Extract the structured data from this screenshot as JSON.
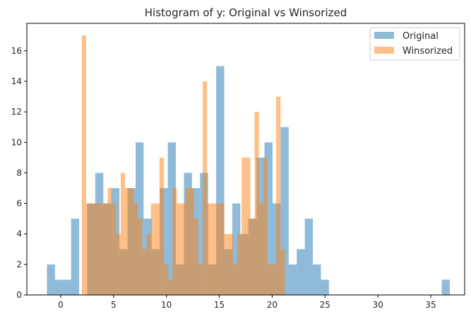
{
  "chart_data": {
    "type": "histogram",
    "title": "Histogram of y: Original vs Winsorized",
    "xlabel": "",
    "ylabel": "",
    "xlim": [
      -3.2,
      38.2
    ],
    "ylim": [
      0,
      17.8
    ],
    "xticks": [
      0,
      5,
      10,
      15,
      20,
      25,
      30,
      35
    ],
    "yticks": [
      0,
      2,
      4,
      6,
      8,
      10,
      12,
      14,
      16
    ],
    "grid": false,
    "legend_position": "top-right",
    "series": [
      {
        "name": "Original",
        "color": "#1f77b4",
        "alpha": 0.5,
        "bin_start": -1.3,
        "bin_width": 0.762,
        "counts": [
          2,
          1,
          1,
          5,
          0,
          6,
          8,
          6,
          7,
          3,
          7,
          10,
          5,
          3,
          7,
          10,
          2,
          8,
          7,
          8,
          2,
          15,
          3,
          6,
          4,
          5,
          9,
          10,
          6,
          11,
          2,
          3,
          5,
          2,
          1,
          0,
          0,
          0,
          0,
          0,
          0,
          0,
          0,
          0,
          0,
          0,
          0,
          0,
          0,
          1
        ]
      },
      {
        "name": "Winsorized",
        "color": "#ff7f0e",
        "alpha": 0.5,
        "bin_start": 2.0,
        "bin_width": 0.4084,
        "counts": [
          17,
          6,
          6,
          6,
          6,
          6,
          7,
          6,
          4,
          8,
          7,
          7,
          6,
          5,
          3,
          4,
          6,
          6,
          9,
          2,
          1,
          7,
          6,
          6,
          7,
          7,
          5,
          2,
          14,
          6,
          6,
          6,
          6,
          4,
          4,
          2,
          4,
          9,
          9,
          5,
          12,
          6,
          9,
          2,
          2,
          13,
          3
        ]
      }
    ]
  }
}
